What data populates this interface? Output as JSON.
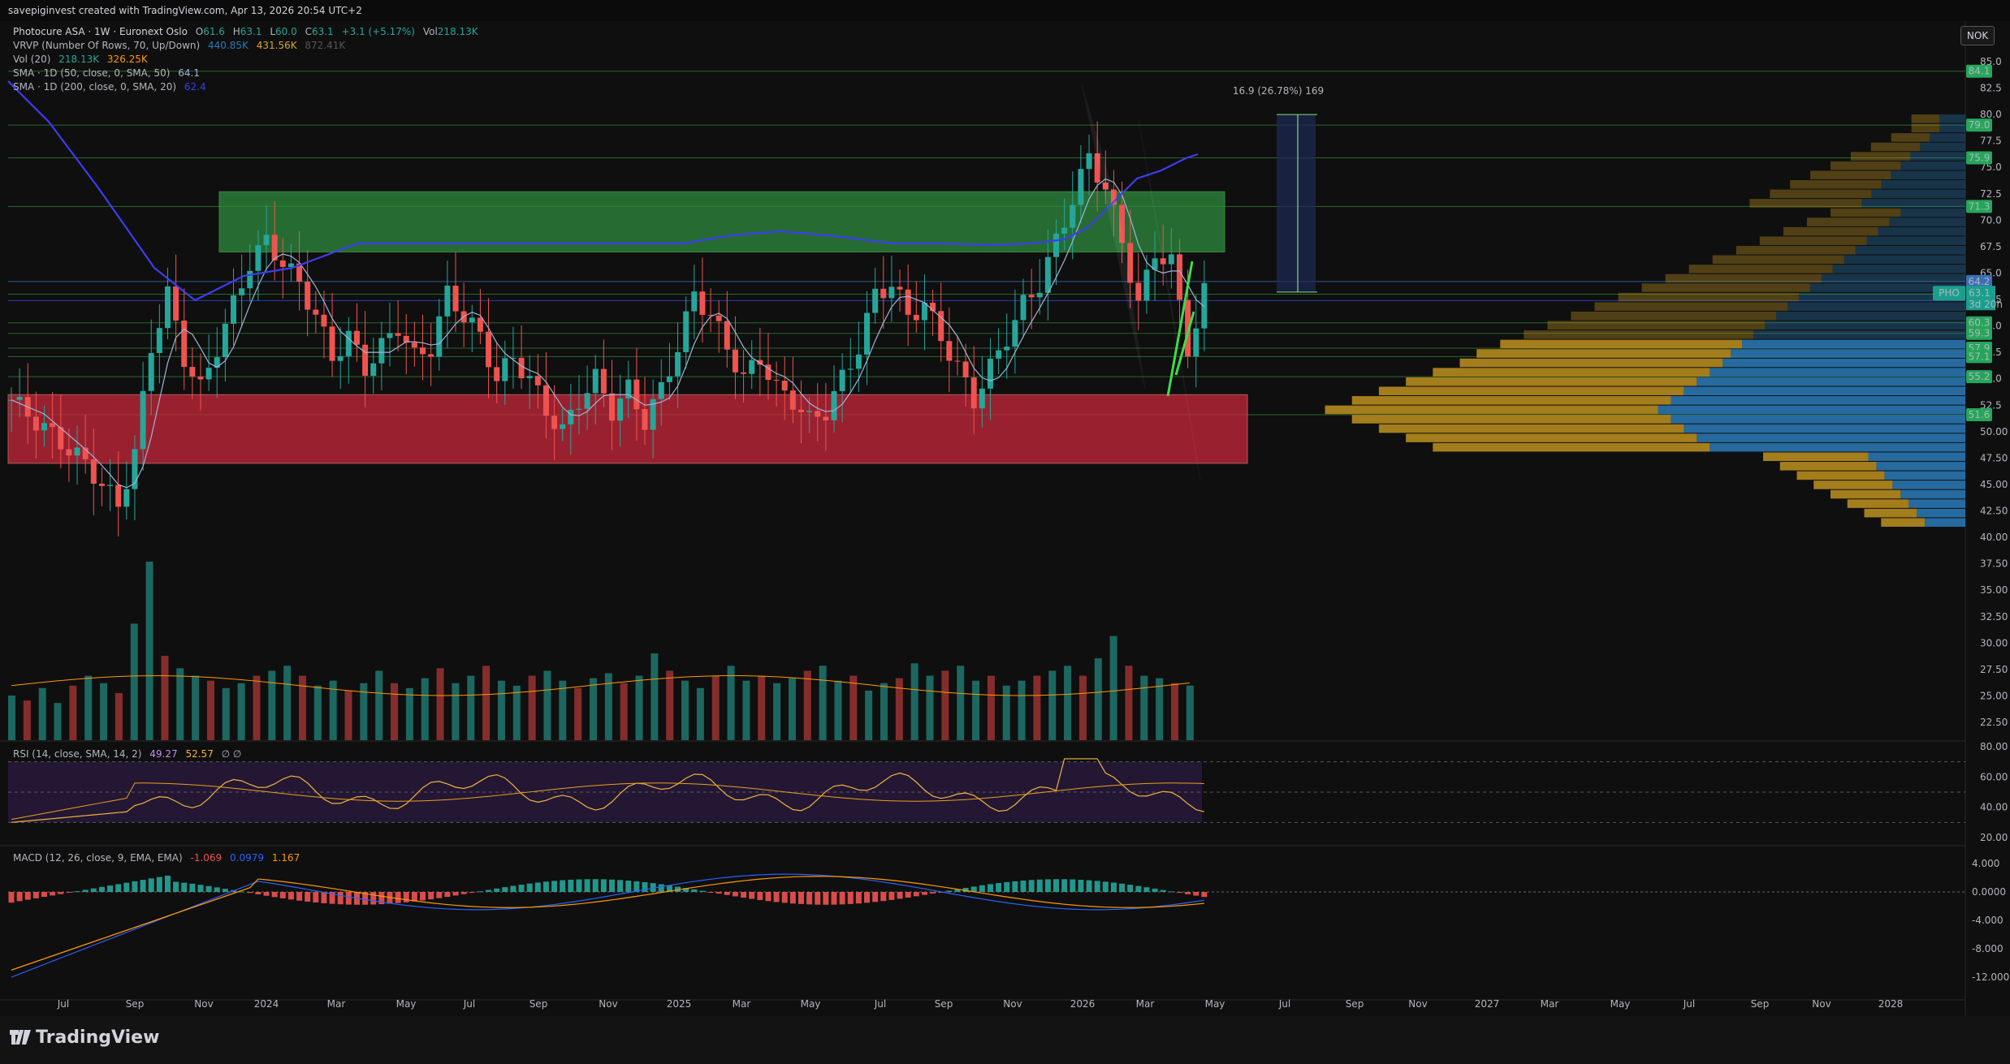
{
  "header": {
    "attribution": "savepiginvest created with TradingView.com, Apr 13, 2026 20:54 UTC+2"
  },
  "legend": {
    "symbol": "Photocure ASA · 1W · Euronext Oslo",
    "ohlc": {
      "o_label": "O",
      "o": "61.6",
      "h_label": "H",
      "h": "63.1",
      "l_label": "L",
      "l": "60.0",
      "c_label": "C",
      "c": "63.1",
      "change": "+3.1 (+5.17%)",
      "vol_label": "Vol",
      "vol": "218.13K"
    },
    "vrvp": {
      "label": "VRVP (Number Of Rows, 70, Up/Down)",
      "v1": "440.85K",
      "v2": "431.56K",
      "v3": "872.41K"
    },
    "vol20": {
      "label": "Vol (20)",
      "v1": "218.13K",
      "v2": "326.25K"
    },
    "sma50": {
      "label": "SMA · 1D (50, close, 0, SMA, 50)",
      "value": "64.1"
    },
    "sma200": {
      "label": "SMA · 1D (200, close, 0, SMA, 20)",
      "value": "62.4"
    }
  },
  "currency_button": "NOK",
  "measure_label": "16.9 (26.78%) 169",
  "rsi": {
    "label": "RSI (14, close, SMA, 14, 2)",
    "v1": "49.27",
    "v2": "52.57",
    "flags": "∅ ∅",
    "axis": [
      "80.00",
      "60.00",
      "40.00",
      "20.00"
    ]
  },
  "macd": {
    "label": "MACD (12, 26, close, 9, EMA, EMA)",
    "v1": "-1.069",
    "v2": "0.0979",
    "v3": "1.167",
    "axis": [
      "4.000",
      "0.0000",
      "-4.000",
      "-8.000",
      "-12.000"
    ]
  },
  "price_axis": [
    "85.0",
    "82.5",
    "80.0",
    "77.5",
    "75.0",
    "72.5",
    "70.0",
    "67.5",
    "65.0",
    "62.5",
    "60.0",
    "57.5",
    "55.0",
    "52.5",
    "50.00",
    "47.50",
    "45.00",
    "42.50",
    "40.00",
    "37.50",
    "35.00",
    "32.50",
    "30.00",
    "27.50",
    "25.00",
    "22.50"
  ],
  "price_tags": [
    {
      "text": "84.1",
      "color": "#26a65b"
    },
    {
      "text": "79.0",
      "color": "#26a65b"
    },
    {
      "text": "75.9",
      "color": "#26a65b"
    },
    {
      "text": "71.3",
      "color": "#26a65b"
    },
    {
      "text": "64.2",
      "color": "#3a6fb5"
    },
    {
      "text": "63.0",
      "color": "#26a65b"
    },
    {
      "text": "62.4",
      "color": "#2a4cd6"
    },
    {
      "text": "60.3",
      "color": "#26a65b"
    },
    {
      "text": "59.3",
      "color": "#26a65b"
    },
    {
      "text": "57.9",
      "color": "#26a65b"
    },
    {
      "text": "57.1",
      "color": "#26a65b"
    },
    {
      "text": "55.2",
      "color": "#26a65b"
    },
    {
      "text": "51.6",
      "color": "#26a65b"
    }
  ],
  "last_price": {
    "symbol": "PHO",
    "price": "63.1",
    "countdown": "3d 20h",
    "color": "#1a9f8f"
  },
  "time_axis": [
    "Jul",
    "Sep",
    "Nov",
    "2024",
    "Mar",
    "May",
    "Jul",
    "Sep",
    "Nov",
    "2025",
    "Mar",
    "May",
    "Jul",
    "Sep",
    "Nov",
    "2026",
    "Mar",
    "May",
    "Jul",
    "Sep",
    "Nov",
    "2027",
    "Mar",
    "May",
    "Jul",
    "Sep",
    "Nov",
    "2028"
  ],
  "branding": "TradingView",
  "colors": {
    "up": "#26a69a",
    "down": "#ef5350",
    "sma50": "#3d3df0",
    "sma20": "#9fb3d6",
    "supply_zone": "#2e8b3e",
    "demand_zone": "#c8283a",
    "vp_up": "#2a7ab8",
    "vp_down": "#b58a1e",
    "rsi_line": "#c28cff",
    "rsi_ma": "#f0b43c",
    "macd_line": "#2962ff",
    "signal_line": "#ff9800"
  },
  "chart_data": [
    {
      "type": "candlestick",
      "title": "Photocure ASA · 1W · Euronext Oslo",
      "x_range": [
        "2023-06",
        "2028-02"
      ],
      "ylim": [
        20,
        87
      ],
      "last": {
        "open": 61.6,
        "high": 63.1,
        "low": 60.0,
        "close": 63.1
      },
      "zones": [
        {
          "name": "supply",
          "low": 67.0,
          "high": 72.7
        },
        {
          "name": "demand",
          "low": 47.0,
          "high": 53.5
        }
      ],
      "close_path": [
        [
          0,
          53
        ],
        [
          3,
          51
        ],
        [
          6,
          49
        ],
        [
          9,
          47
        ],
        [
          11,
          45
        ],
        [
          13,
          43
        ],
        [
          15,
          48
        ],
        [
          17,
          58
        ],
        [
          19,
          63
        ],
        [
          21,
          57
        ],
        [
          23,
          54
        ],
        [
          25,
          58
        ],
        [
          27,
          62
        ],
        [
          29,
          66
        ],
        [
          31,
          68
        ],
        [
          33,
          66
        ],
        [
          35,
          64
        ],
        [
          37,
          61
        ],
        [
          39,
          57
        ],
        [
          41,
          59
        ],
        [
          43,
          56
        ],
        [
          45,
          58
        ],
        [
          47,
          60
        ],
        [
          49,
          57
        ],
        [
          51,
          58
        ],
        [
          53,
          63
        ],
        [
          55,
          61
        ],
        [
          57,
          59
        ],
        [
          59,
          55
        ],
        [
          61,
          57
        ],
        [
          63,
          55
        ],
        [
          65,
          52
        ],
        [
          67,
          50
        ],
        [
          69,
          53
        ],
        [
          71,
          55
        ],
        [
          73,
          52
        ],
        [
          75,
          54
        ],
        [
          77,
          51
        ],
        [
          79,
          54
        ],
        [
          81,
          58
        ],
        [
          83,
          63
        ],
        [
          85,
          61
        ],
        [
          87,
          58
        ],
        [
          89,
          55
        ],
        [
          91,
          57
        ],
        [
          93,
          54
        ],
        [
          95,
          53
        ],
        [
          97,
          51
        ],
        [
          99,
          52
        ],
        [
          101,
          55
        ],
        [
          103,
          58
        ],
        [
          105,
          63
        ],
        [
          107,
          64
        ],
        [
          109,
          61
        ],
        [
          111,
          62
        ],
        [
          113,
          59
        ],
        [
          115,
          56
        ],
        [
          117,
          53
        ],
        [
          119,
          56
        ],
        [
          121,
          59
        ],
        [
          123,
          62
        ],
        [
          125,
          64
        ],
        [
          127,
          68
        ],
        [
          129,
          72
        ],
        [
          131,
          76
        ],
        [
          133,
          73
        ],
        [
          135,
          68
        ],
        [
          137,
          62
        ],
        [
          139,
          67
        ],
        [
          141,
          66
        ],
        [
          143,
          58
        ],
        [
          144,
          60
        ],
        [
          145,
          63.1
        ]
      ]
    },
    {
      "type": "bar",
      "title": "Vol (20)",
      "values_k": [
        180,
        160,
        210,
        150,
        220,
        260,
        230,
        190,
        470,
        720,
        340,
        290,
        260,
        240,
        210,
        230,
        260,
        280,
        300,
        260,
        220,
        240,
        200,
        230,
        280,
        230,
        210,
        250,
        290,
        230,
        260,
        300,
        240,
        220,
        260,
        280,
        240,
        210,
        250,
        270,
        230,
        260,
        350,
        280,
        240,
        210,
        260,
        300,
        240,
        260,
        230,
        250,
        280,
        300,
        240,
        260,
        200,
        230,
        250,
        310,
        260,
        280,
        300,
        240,
        260,
        220,
        240,
        260,
        280,
        300,
        260,
        330,
        420,
        300,
        260,
        250,
        230,
        220
      ]
    },
    {
      "type": "line",
      "title": "RSI (14, close, SMA, 14, 2)",
      "ylim": [
        20,
        80
      ],
      "last": [
        49.27,
        52.57
      ]
    },
    {
      "type": "bar",
      "title": "MACD (12, 26, close, 9, EMA, EMA)",
      "ylim": [
        -13,
        5
      ],
      "last": {
        "histogram": -1.069,
        "macd": 0.0979,
        "signal": 1.167
      }
    }
  ]
}
